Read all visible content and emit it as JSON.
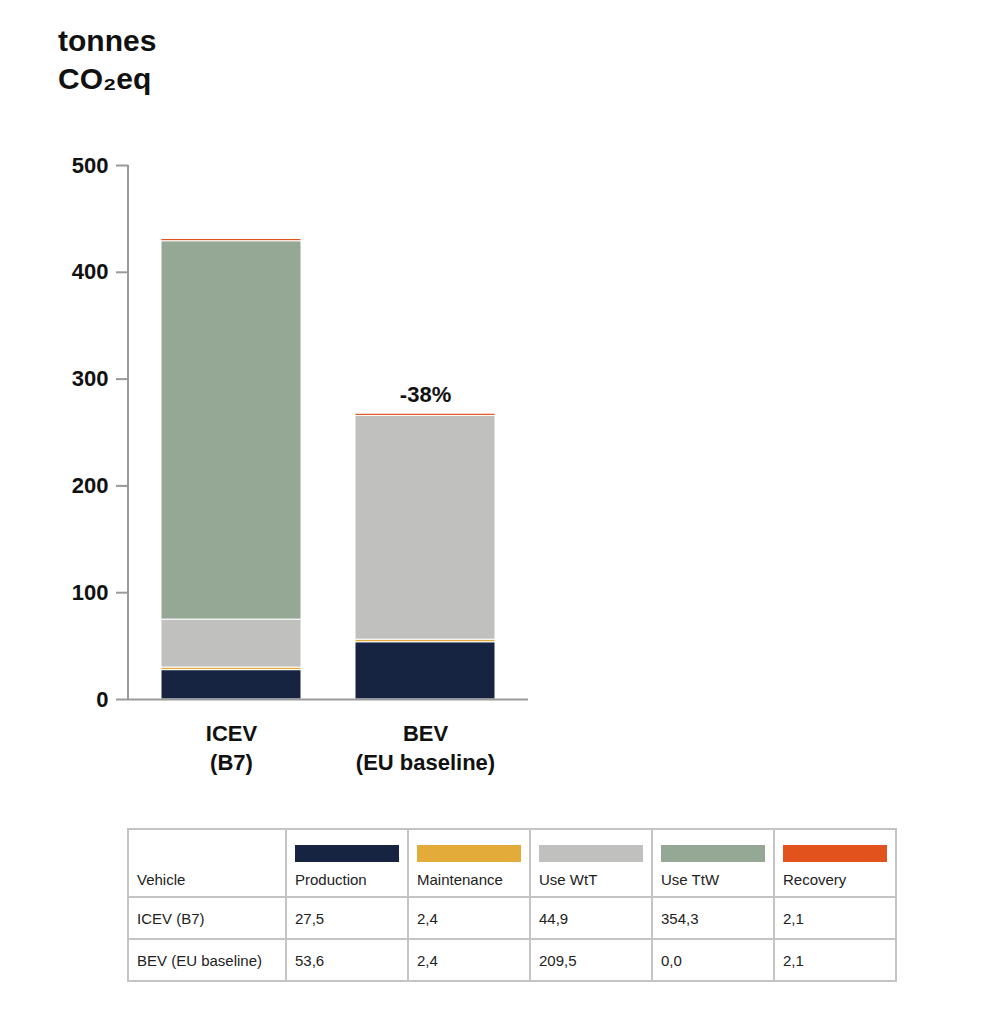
{
  "chart_data": {
    "type": "bar",
    "stacked": true,
    "y_label": "tonnes CO₂eq",
    "categories": [
      "ICEV (B7)",
      "BEV (EU baseline)"
    ],
    "series": [
      {
        "name": "Production",
        "color": "#162441",
        "values": [
          27.5,
          53.6
        ],
        "value_labels": [
          "27,5",
          "53,6"
        ]
      },
      {
        "name": "Maintenance",
        "color": "#e3ab3a",
        "values": [
          2.4,
          2.4
        ],
        "value_labels": [
          "2,4",
          "2,4"
        ]
      },
      {
        "name": "Use WtT",
        "color": "#c0c1be",
        "values": [
          44.9,
          209.5
        ],
        "value_labels": [
          "44,9",
          "209,5"
        ]
      },
      {
        "name": "Use TtW",
        "color": "#94a895",
        "values": [
          354.3,
          0.0
        ],
        "value_labels": [
          "354,3",
          "0,0"
        ]
      },
      {
        "name": "Recovery",
        "color": "#e2521d",
        "values": [
          2.1,
          2.1
        ],
        "value_labels": [
          "2,1",
          "2,1"
        ]
      }
    ],
    "ylim": [
      0,
      500
    ],
    "yticks": [
      0,
      100,
      200,
      300,
      400,
      500
    ],
    "grid": false,
    "legend": "bottom",
    "table_header": "Vehicle",
    "annotations": [
      {
        "text": "-38%",
        "category": "BEV (EU baseline)"
      }
    ]
  }
}
